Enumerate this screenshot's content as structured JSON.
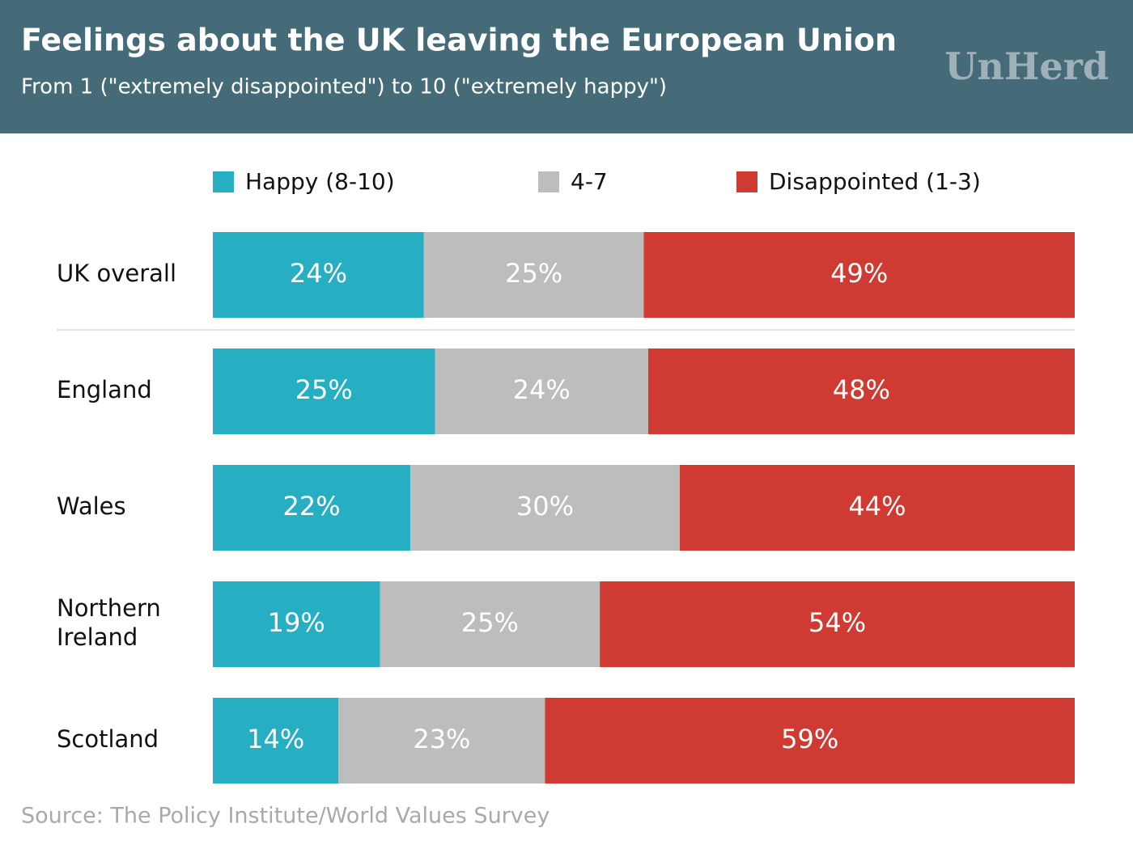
{
  "chart_data": {
    "type": "stacked-bar",
    "title": "Feelings about the UK leaving the European Union",
    "subtitle": "From 1 (\"extremely disappointed\") to 10 (\"extremely happy\")",
    "logo": "UnHerd",
    "source": "Source: The Policy Institute/World Values Survey",
    "categories": [
      "UK overall",
      "England",
      "Wales",
      "Northern Ireland",
      "Scotland"
    ],
    "series": [
      {
        "name": "Happy (8-10)",
        "color": "#26aec2",
        "values": [
          24,
          25,
          22,
          19,
          14
        ],
        "value_labels": [
          "24%",
          "25%",
          "22%",
          "19%",
          "14%"
        ]
      },
      {
        "name": "4-7",
        "color": "#bdbdbd",
        "values": [
          25,
          24,
          30,
          25,
          23
        ],
        "value_labels": [
          "25%",
          "24%",
          "30%",
          "25%",
          "23%"
        ]
      },
      {
        "name": "Disappointed (1-3)",
        "color": "#cf3a32",
        "values": [
          49,
          48,
          44,
          54,
          59
        ],
        "value_labels": [
          "49%",
          "48%",
          "44%",
          "54%",
          "59%"
        ]
      }
    ]
  }
}
